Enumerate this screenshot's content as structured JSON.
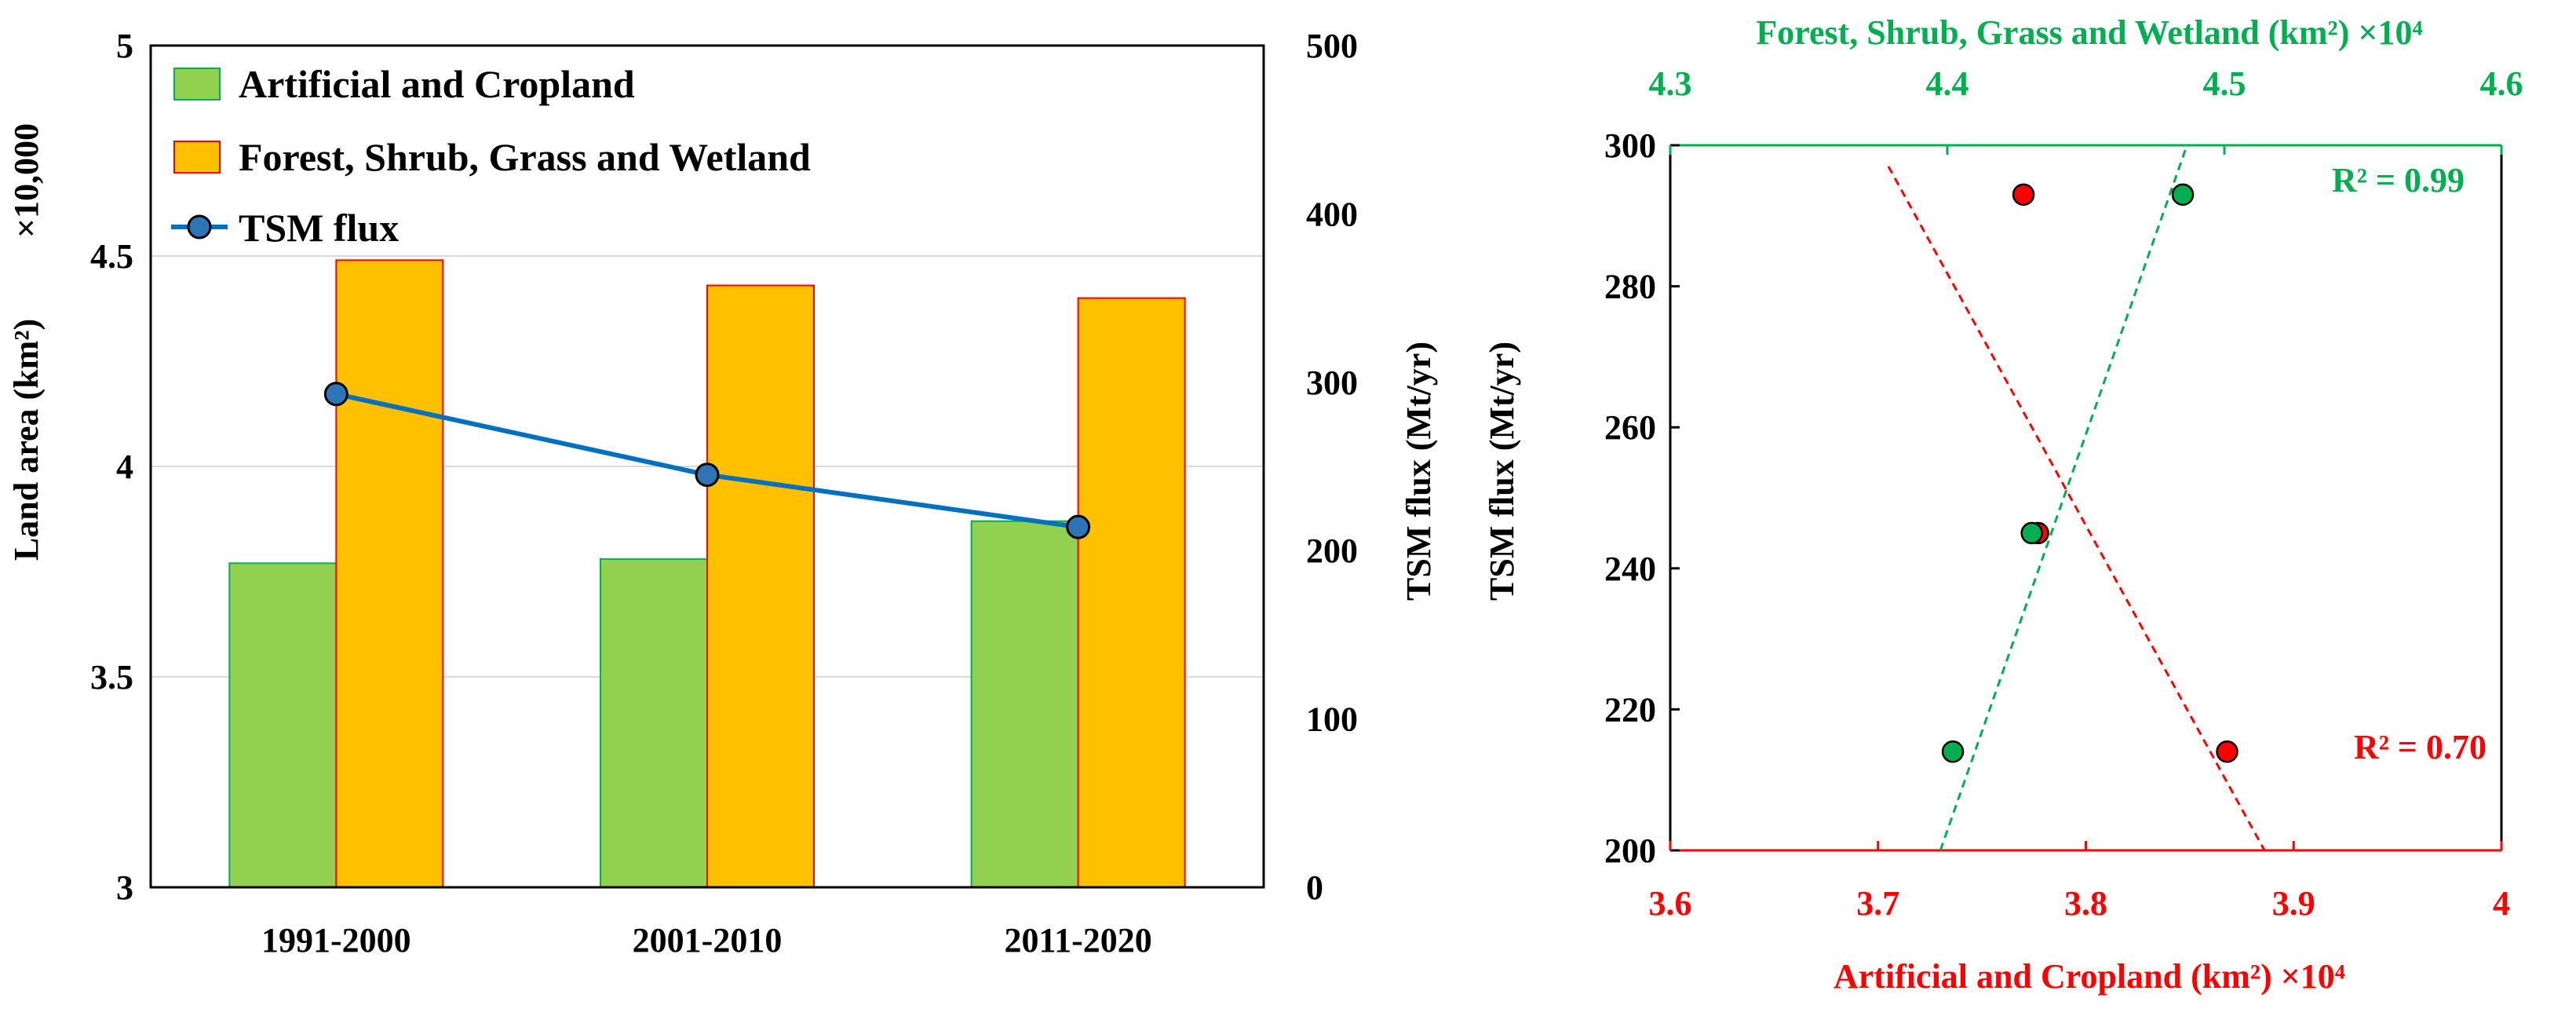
{
  "chart_data": [
    {
      "type": "bar",
      "categories": [
        "1991-2000",
        "2001-2010",
        "2011-2020"
      ],
      "series": [
        {
          "name": "Artificial and Cropland",
          "axis": "left",
          "values": [
            3.77,
            3.78,
            3.87
          ],
          "color": "#92D050",
          "edge": "#00B050"
        },
        {
          "name": "Forest, Shrub, Grass and Wetland",
          "axis": "left",
          "values": [
            4.49,
            4.43,
            4.4
          ],
          "color": "#FFC000",
          "edge": "#FF0000"
        },
        {
          "name": "TSM flux",
          "axis": "right",
          "type": "line",
          "values": [
            293,
            245,
            214
          ],
          "color": "#0070C0",
          "marker_fill": "#2E75B6"
        }
      ],
      "ylabel": "Land area (km²)",
      "ylabel_multiplier": "×10,000",
      "ylim": [
        3,
        5
      ],
      "yticks": [
        "3",
        "3.5",
        "4",
        "4.5",
        "5"
      ],
      "ylabel_right": "TSM flux (Mt/yr)",
      "ylim_right": [
        0,
        500
      ],
      "yticks_right": [
        "0",
        "100",
        "200",
        "300",
        "400",
        "500"
      ],
      "grid": true,
      "legend": "top-left"
    },
    {
      "type": "scatter",
      "ylabel": "TSM flux (Mt/yr)",
      "ylim": [
        200,
        300
      ],
      "yticks": [
        "200",
        "220",
        "240",
        "260",
        "280",
        "300"
      ],
      "xlabel_bottom": "Artificial and Cropland (km²) ×10⁴",
      "xlim_bottom": [
        3.6,
        4.0
      ],
      "xticks_bottom": [
        "3.6",
        "3.7",
        "3.8",
        "3.9",
        "4"
      ],
      "xlabel_top": "Forest, Shrub, Grass and Wetland (km²) ×10⁴",
      "xlim_top": [
        4.3,
        4.6
      ],
      "xticks_top": [
        "4.3",
        "4.4",
        "4.5",
        "4.6"
      ],
      "series": [
        {
          "name": "Artificial and Cropland",
          "axis": "bottom",
          "color": "#FF0000",
          "points": [
            [
              3.77,
              293
            ],
            [
              3.777,
              245
            ],
            [
              3.868,
              214
            ]
          ],
          "fit": [
            [
              3.705,
              297
            ],
            [
              3.886,
              200
            ]
          ],
          "r2_label": "R² = 0.70"
        },
        {
          "name": "Forest, Shrub, Grass and Wetland",
          "axis": "top",
          "color": "#00B050",
          "points": [
            [
              4.485,
              293
            ],
            [
              4.4305,
              245
            ],
            [
              4.402,
              214
            ]
          ],
          "fit": [
            [
              4.3975,
              200
            ],
            [
              4.4865,
              300
            ]
          ],
          "r2_label": "R² = 0.99"
        }
      ]
    }
  ]
}
